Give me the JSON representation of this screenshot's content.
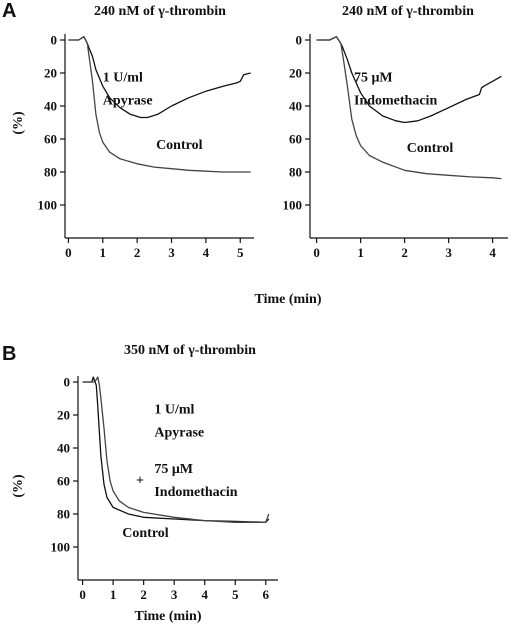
{
  "panels": {
    "a": "A",
    "b": "B"
  },
  "xlabel_shared": "Time  (min)",
  "chart_data": [
    {
      "type": "line",
      "title": "240 nM of γ-thrombin",
      "xlabel": "",
      "ylabel": "(%)",
      "xlim": [
        -0.1,
        5.4
      ],
      "ylim": [
        0,
        120
      ],
      "y_inverted": true,
      "xticks": [
        0,
        1,
        2,
        3,
        4,
        5
      ],
      "yticks": [
        0,
        20,
        40,
        60,
        80,
        100
      ],
      "grid": false,
      "series": [
        {
          "name": "1 U/ml Apyrase",
          "x": [
            0,
            0.3,
            0.45,
            0.55,
            0.6,
            0.7,
            0.8,
            1.0,
            1.2,
            1.5,
            1.8,
            2.1,
            2.3,
            2.6,
            3.0,
            3.5,
            4.0,
            4.5,
            4.9,
            5.0,
            5.1,
            5.3
          ],
          "y": [
            0,
            0,
            -2,
            2,
            5,
            10,
            18,
            28,
            35,
            41,
            45,
            47,
            47,
            45,
            40,
            35,
            31,
            28,
            26,
            25,
            21,
            20
          ]
        },
        {
          "name": "Control",
          "x": [
            0,
            0.3,
            0.45,
            0.55,
            0.6,
            0.7,
            0.8,
            0.9,
            1.0,
            1.2,
            1.5,
            2.0,
            2.5,
            3.0,
            3.5,
            4.0,
            4.5,
            5.0,
            5.3
          ],
          "y": [
            0,
            0,
            -2,
            2,
            10,
            25,
            45,
            56,
            62,
            68,
            72,
            75,
            77,
            78,
            79,
            79.5,
            80,
            80,
            80
          ]
        }
      ],
      "annotations": [
        {
          "text": "1 U/ml",
          "x": 1.0,
          "y": 25
        },
        {
          "text": "Apyrase",
          "x": 1.0,
          "y": 39
        },
        {
          "text": "Control",
          "x": 2.55,
          "y": 66
        }
      ]
    },
    {
      "type": "line",
      "title": "240 nM of γ-thrombin",
      "xlabel": "",
      "ylabel": "",
      "xlim": [
        -0.15,
        4.35
      ],
      "ylim": [
        0,
        120
      ],
      "y_inverted": true,
      "xticks": [
        0,
        1,
        2,
        3,
        4
      ],
      "yticks": [
        0,
        20,
        40,
        60,
        80,
        100
      ],
      "grid": false,
      "series": [
        {
          "name": "75 μM Indomethacin",
          "x": [
            0,
            0.3,
            0.45,
            0.55,
            0.6,
            0.7,
            0.8,
            1.0,
            1.2,
            1.5,
            1.8,
            2.0,
            2.3,
            2.6,
            3.0,
            3.4,
            3.7,
            3.75,
            3.8,
            4.0,
            4.2
          ],
          "y": [
            0,
            0,
            -2,
            2,
            5,
            12,
            20,
            32,
            40,
            46,
            49,
            50,
            49,
            46,
            41,
            36,
            33,
            29,
            28,
            25,
            22
          ]
        },
        {
          "name": "Control",
          "x": [
            0,
            0.3,
            0.45,
            0.55,
            0.6,
            0.7,
            0.8,
            0.9,
            1.0,
            1.2,
            1.5,
            2.0,
            2.5,
            3.0,
            3.5,
            4.0,
            4.2
          ],
          "y": [
            0,
            0,
            -2,
            2,
            10,
            28,
            48,
            58,
            64,
            70,
            74,
            79,
            81,
            82,
            83,
            83.5,
            84
          ]
        }
      ],
      "annotations": [
        {
          "text": "75 μM",
          "x": 0.85,
          "y": 25
        },
        {
          "text": "Indomethacin",
          "x": 0.85,
          "y": 39
        },
        {
          "text": "Control",
          "x": 2.05,
          "y": 68
        }
      ]
    },
    {
      "type": "line",
      "title": "350 nM of γ-thrombin",
      "xlabel": "Time  (min)",
      "ylabel": "(%)",
      "xlim": [
        -0.15,
        6.4
      ],
      "ylim": [
        0,
        120
      ],
      "y_inverted": true,
      "xticks": [
        0,
        1,
        2,
        3,
        4,
        5,
        6
      ],
      "yticks": [
        0,
        20,
        40,
        60,
        80,
        100
      ],
      "grid": false,
      "series": [
        {
          "name": "Control",
          "x": [
            0,
            0.3,
            0.35,
            0.45,
            0.5,
            0.6,
            0.7,
            0.8,
            1.0,
            1.5,
            2.0,
            3.0,
            4.0,
            5.0,
            6.0,
            6.1
          ],
          "y": [
            0,
            0,
            -3,
            2,
            15,
            45,
            62,
            70,
            76,
            80,
            82,
            83,
            84,
            84.5,
            85,
            83
          ]
        },
        {
          "name": "1 U/ml Apyrase + 75 μM Indomethacin",
          "x": [
            0,
            0.4,
            0.5,
            0.55,
            0.6,
            0.7,
            0.8,
            0.9,
            1.0,
            1.2,
            1.5,
            2.0,
            3.0,
            4.0,
            5.0,
            6.0,
            6.1
          ],
          "y": [
            0,
            0,
            -3,
            2,
            10,
            28,
            48,
            60,
            66,
            72,
            76,
            79,
            82,
            84,
            85,
            85,
            80
          ]
        }
      ],
      "annotations": [
        {
          "text": "1 U/ml",
          "x": 2.35,
          "y": 19
        },
        {
          "text": "Apyrase",
          "x": 2.35,
          "y": 33
        },
        {
          "text": "+",
          "x": 1.75,
          "y": 62
        },
        {
          "text": "75 μM",
          "x": 2.35,
          "y": 55
        },
        {
          "text": "Indomethacin",
          "x": 2.35,
          "y": 69
        },
        {
          "text": "Control",
          "x": 1.3,
          "y": 94
        }
      ]
    }
  ]
}
